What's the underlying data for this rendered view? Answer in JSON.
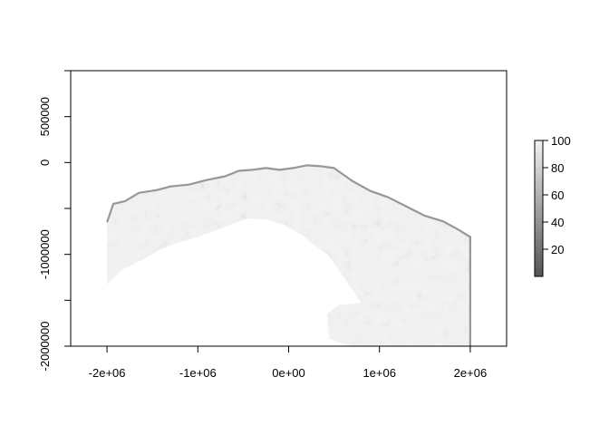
{
  "chart_data": {
    "type": "heatmap",
    "title": "",
    "xlabel": "",
    "ylabel": "",
    "xlim": [
      -2400000,
      2400000
    ],
    "ylim": [
      -2000000,
      1000000
    ],
    "grid": false,
    "colormap": "grayscale",
    "colors": {
      "low": "#555555",
      "high": "#f2f2f2",
      "background": "#ffffff",
      "axis": "#000000"
    },
    "x_ticks": [
      {
        "value": -2000000,
        "label": "-2e+06"
      },
      {
        "value": -1000000,
        "label": "-1e+06"
      },
      {
        "value": 0,
        "label": "0e+00"
      },
      {
        "value": 1000000,
        "label": "1e+06"
      },
      {
        "value": 2000000,
        "label": "2e+06"
      }
    ],
    "y_ticks": [
      {
        "value": 500000,
        "label": "500000"
      },
      {
        "value": 0,
        "label": "0"
      },
      {
        "value": -1000000,
        "label": "-1000000"
      },
      {
        "value": -2000000,
        "label": "-2000000"
      }
    ],
    "y_minor_ticks": [
      1000000,
      -500000,
      -1500000
    ],
    "legend": {
      "placement": "right",
      "range": [
        0,
        100
      ],
      "ticks": [
        {
          "value": 20,
          "label": "20"
        },
        {
          "value": 40,
          "label": "40"
        },
        {
          "value": 60,
          "label": "60"
        },
        {
          "value": 80,
          "label": "80"
        },
        {
          "value": 100,
          "label": "100"
        }
      ]
    },
    "raster_outline": [
      [
        -2000000,
        -650000
      ],
      [
        -1930000,
        -450000
      ],
      [
        -1800000,
        -420000
      ],
      [
        -1650000,
        -330000
      ],
      [
        -1450000,
        -300000
      ],
      [
        -1300000,
        -260000
      ],
      [
        -1100000,
        -240000
      ],
      [
        -900000,
        -190000
      ],
      [
        -700000,
        -150000
      ],
      [
        -550000,
        -90000
      ],
      [
        -400000,
        -80000
      ],
      [
        -250000,
        -60000
      ],
      [
        -100000,
        -80000
      ],
      [
        50000,
        -60000
      ],
      [
        200000,
        -30000
      ],
      [
        350000,
        -40000
      ],
      [
        500000,
        -60000
      ],
      [
        700000,
        -200000
      ],
      [
        900000,
        -310000
      ],
      [
        1100000,
        -380000
      ],
      [
        1300000,
        -480000
      ],
      [
        1500000,
        -580000
      ],
      [
        1700000,
        -640000
      ],
      [
        1850000,
        -720000
      ],
      [
        2000000,
        -810000
      ],
      [
        2000000,
        -2000000
      ],
      [
        650000,
        -2000000
      ],
      [
        450000,
        -1920000
      ],
      [
        420000,
        -1650000
      ],
      [
        550000,
        -1550000
      ],
      [
        800000,
        -1530000
      ],
      [
        700000,
        -1380000
      ],
      [
        570000,
        -1200000
      ],
      [
        430000,
        -1000000
      ],
      [
        280000,
        -900000
      ],
      [
        150000,
        -790000
      ],
      [
        -50000,
        -680000
      ],
      [
        -250000,
        -620000
      ],
      [
        -450000,
        -610000
      ],
      [
        -650000,
        -680000
      ],
      [
        -800000,
        -740000
      ],
      [
        -1000000,
        -810000
      ],
      [
        -1200000,
        -870000
      ],
      [
        -1400000,
        -940000
      ],
      [
        -1650000,
        -1080000
      ],
      [
        -1850000,
        -1180000
      ],
      [
        -2000000,
        -1330000
      ]
    ]
  }
}
